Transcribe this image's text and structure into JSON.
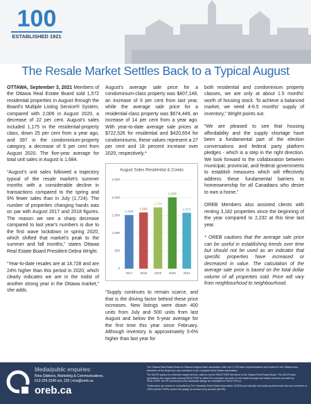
{
  "header": {
    "logo_number": "100",
    "logo_text": "ESTABLISHED 1921",
    "title": "The Resale Market Settles Back to a Typical August"
  },
  "body": {
    "columns": [
      {
        "paragraphs": [
          {
            "lead": "OTTAWA, September 3, 2021",
            "text": "Members of the Ottawa Real Estate Board sold 1,572 residential properties in August through the Board's Multiple Listing Service® System, compared with 2,006 in August 2020, a decrease of 22 per cent. August's sales included 1,175 in the residential-property class, down 25 per cent from a year ago, and 397 in the condominium-property category, a decrease of 9 per cent from August 2020. The five-year average for total unit sales in August is 1,684."
          },
          {
            "text": "“August's unit sales followed a trajectory typical of the resale market's summer months with a considerable decline in transactions compared to the spring and 9% fewer sales than in July (1,724). The number of properties changing hands was on par with August 2017 and 2018 figures. The reason we see a sharp decrease compared to last year's numbers is due to the first wave lockdown in spring 2020, which shifted that market's peak to the summer and fall months,” states Ottawa Real Estate Board President Debra Wright."
          },
          {
            "text": "“Year-to-date resales are at 14,728 and are 24% higher than this period in 2020, which clearly indicates we are in the midst of another strong year in the Ottawa market,” she adds."
          }
        ]
      },
      {
        "paragraphs": [
          {
            "text": "August's average sale price for a condominium-class property was $407,148, an increase of 6 per cent from last year, while the average sale price for a residential-class property was $674,449, an increase of 14 per cent from a year ago. With year-to-date average sale prices at $722,526 for residential and $420,654 for condominiums, these values represent a 27 per cent and 18 percent increase over 2020, respectively.*"
          },
          {
            "text": "“Supply continues to remain scarce, and that is the driving factor behind these price increases. New listings were down 400 units from July and 500 units from last August and below the 5-year average for the first time this year since February. Although inventory is approximately 5-6% higher than last year for"
          }
        ]
      },
      {
        "paragraphs": [
          {
            "text": "both residential and condominium property classes, we are only at about 1.5 months' worth of housing stock. To achieve a balanced market, we need 4-6.5 months' supply of inventory,” Wright points out."
          },
          {
            "text": "“We are pleased to see that housing affordability and the supply shortage have been a fundamental part of the election conversations and federal party platform pledges - which is a step in the right direction. We look forward to the collaboration between municipal, provincial, and federal governments to establish measures which will effectively address these fundamental barriers to homeownership for all Canadians who desire to own a home.”"
          },
          {
            "text": "OREB Members also assisted clients with renting 3,182 properties since the beginning of the year compared to 2,232 at this time last year."
          },
          {
            "text": "* OREB cautions that the average sale price can be useful in establishing trends over time but should not be used as an indicator that specific properties have increased or decreased in value. The calculation of the average sale price is based on the total dollar volume of all properties sold. Price will vary from neighbourhood to neighbourhood."
          }
        ]
      }
    ]
  },
  "chart_data": {
    "type": "bar",
    "title": "August Sales Residential & Condo",
    "categories": [
      "2017",
      "2018",
      "2019",
      "2020",
      "2021"
    ],
    "values": [
      1508,
      1581,
      1723,
      2006,
      1572
    ],
    "value_labels": [
      "1,508",
      "1,581",
      "1,723",
      "2,006",
      "1,572"
    ],
    "colors": [
      "#4f81bd",
      "#c0504d",
      "#9bbb59",
      "#4e9a3a",
      "#4bacc6"
    ],
    "ylim": [
      0,
      2500
    ],
    "yticks": [
      0,
      500,
      {
        "value": 1000,
        "label": "1,000"
      },
      {
        "value": 1500,
        "label": "1,500"
      },
      {
        "value": 2000,
        "label": "2,000"
      },
      {
        "value": 2500,
        "label": "2,500"
      }
    ],
    "grid": true
  },
  "footer": {
    "contact_title": "Media/public enquiries:",
    "contact_name": "Rina Gibbons, Marketing & Communications,",
    "contact_phone": "613-225-2240 ext. 233  |  rina@oreb.ca",
    "website": "oreb.ca",
    "notes": [
      "The Ottawa Real Estate Board is Ottawa's largest trade association with over 3,700 sales representatives and brokers in the Ottawa area. Members of the Board are also members of the Canadian Real Estate Association.",
      "The MLS® system is a Member-based service, paid for by the REALTOR® Members of the Ottawa Real Estate Board. The MLS® stats symbolizes the cooperation among REALTOR® to affect the purchase and sale of real estate through real estate services provided by REALTOR®. MLS® commercial and residential listings are available on REALTOR.ca",
      "Trademarks are owned or controlled by The Canadian Real Estate Association (CREA) and identify real estate professionals who are members of CREA (REALTOR®) and/or the quality of services they provide (MLS®)."
    ]
  }
}
